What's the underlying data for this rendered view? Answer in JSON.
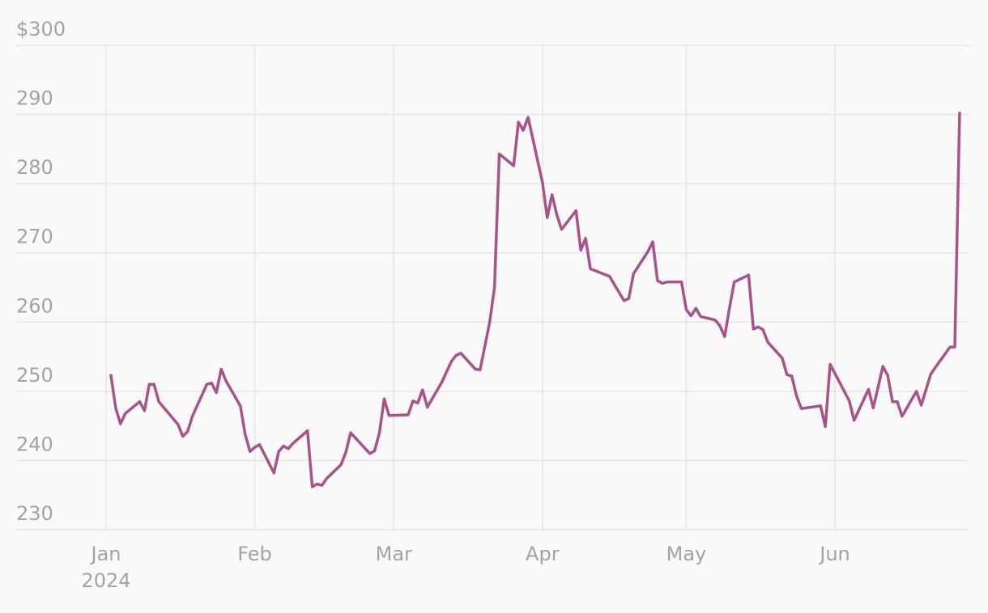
{
  "chart_data": {
    "type": "line",
    "year_label": "2024",
    "x": [
      1,
      2,
      3,
      4,
      7,
      8,
      9,
      10,
      11,
      15,
      16,
      17,
      18,
      21,
      22,
      23,
      24,
      25,
      28,
      29,
      30,
      31,
      32,
      35,
      36,
      37,
      38,
      39,
      42,
      43,
      44,
      45,
      46,
      49,
      50,
      51,
      55,
      56,
      57,
      58,
      59,
      63,
      64,
      65,
      66,
      67,
      70,
      71,
      72,
      73,
      74,
      77,
      78,
      80,
      81,
      82,
      85,
      86,
      87,
      88,
      91,
      92,
      93,
      94,
      95,
      98,
      99,
      100,
      101,
      105,
      108,
      109,
      110,
      113,
      114,
      115,
      116,
      117,
      120,
      121,
      122,
      123,
      124,
      127,
      128,
      129,
      130,
      131,
      134,
      135,
      136,
      137,
      138,
      141,
      142,
      143,
      144,
      145,
      149,
      150,
      151,
      155,
      156,
      159,
      160,
      162,
      163,
      164,
      165,
      166,
      169,
      170,
      172,
      173,
      176,
      177,
      178
    ],
    "series": [
      {
        "color": "#a8538a",
        "values": [
          252.3,
          247.6,
          245.3,
          246.8,
          248.5,
          247.2,
          251.0,
          251.0,
          248.5,
          245.2,
          243.5,
          244.2,
          246.4,
          251.0,
          251.2,
          249.8,
          253.2,
          251.5,
          247.9,
          243.8,
          241.3,
          241.9,
          242.3,
          238.2,
          241.3,
          242.1,
          241.7,
          242.5,
          244.3,
          236.2,
          236.6,
          236.4,
          237.4,
          239.4,
          241.2,
          244.0,
          241.0,
          241.4,
          244.0,
          248.9,
          246.5,
          246.6,
          248.6,
          248.3,
          250.2,
          247.7,
          251.3,
          252.8,
          254.3,
          255.2,
          255.5,
          253.2,
          253.1,
          260.0,
          265.0,
          284.3,
          282.6,
          288.9,
          287.7,
          289.6,
          280.2,
          275.1,
          278.4,
          275.5,
          273.4,
          276.1,
          270.4,
          272.1,
          267.7,
          266.6,
          263.1,
          263.4,
          267.0,
          270.2,
          271.6,
          266.0,
          265.6,
          265.8,
          265.8,
          261.8,
          260.9,
          262.0,
          260.8,
          260.3,
          259.5,
          257.9,
          262.0,
          265.8,
          266.8,
          259.0,
          259.3,
          258.9,
          257.1,
          254.8,
          252.4,
          252.2,
          249.3,
          247.5,
          247.9,
          244.9,
          253.9,
          248.6,
          245.8,
          250.3,
          247.6,
          253.6,
          252.3,
          248.5,
          248.5,
          246.4,
          250.0,
          248.0,
          252.5,
          253.5,
          256.4,
          256.4,
          290.2
        ]
      }
    ],
    "xlim": [
      -18.75,
      179.87
    ],
    "xticks": [
      {
        "value": 0,
        "label": "Jan"
      },
      {
        "value": 31,
        "label": "Feb"
      },
      {
        "value": 60,
        "label": "Mar"
      },
      {
        "value": 91,
        "label": "Apr"
      },
      {
        "value": 121,
        "label": "May"
      },
      {
        "value": 152,
        "label": "Jun"
      }
    ],
    "ylim": [
      230,
      300
    ],
    "yticks": [
      230,
      240,
      250,
      260,
      270,
      280,
      290,
      {
        "value": 300,
        "label": "$300"
      }
    ],
    "grid": true
  }
}
